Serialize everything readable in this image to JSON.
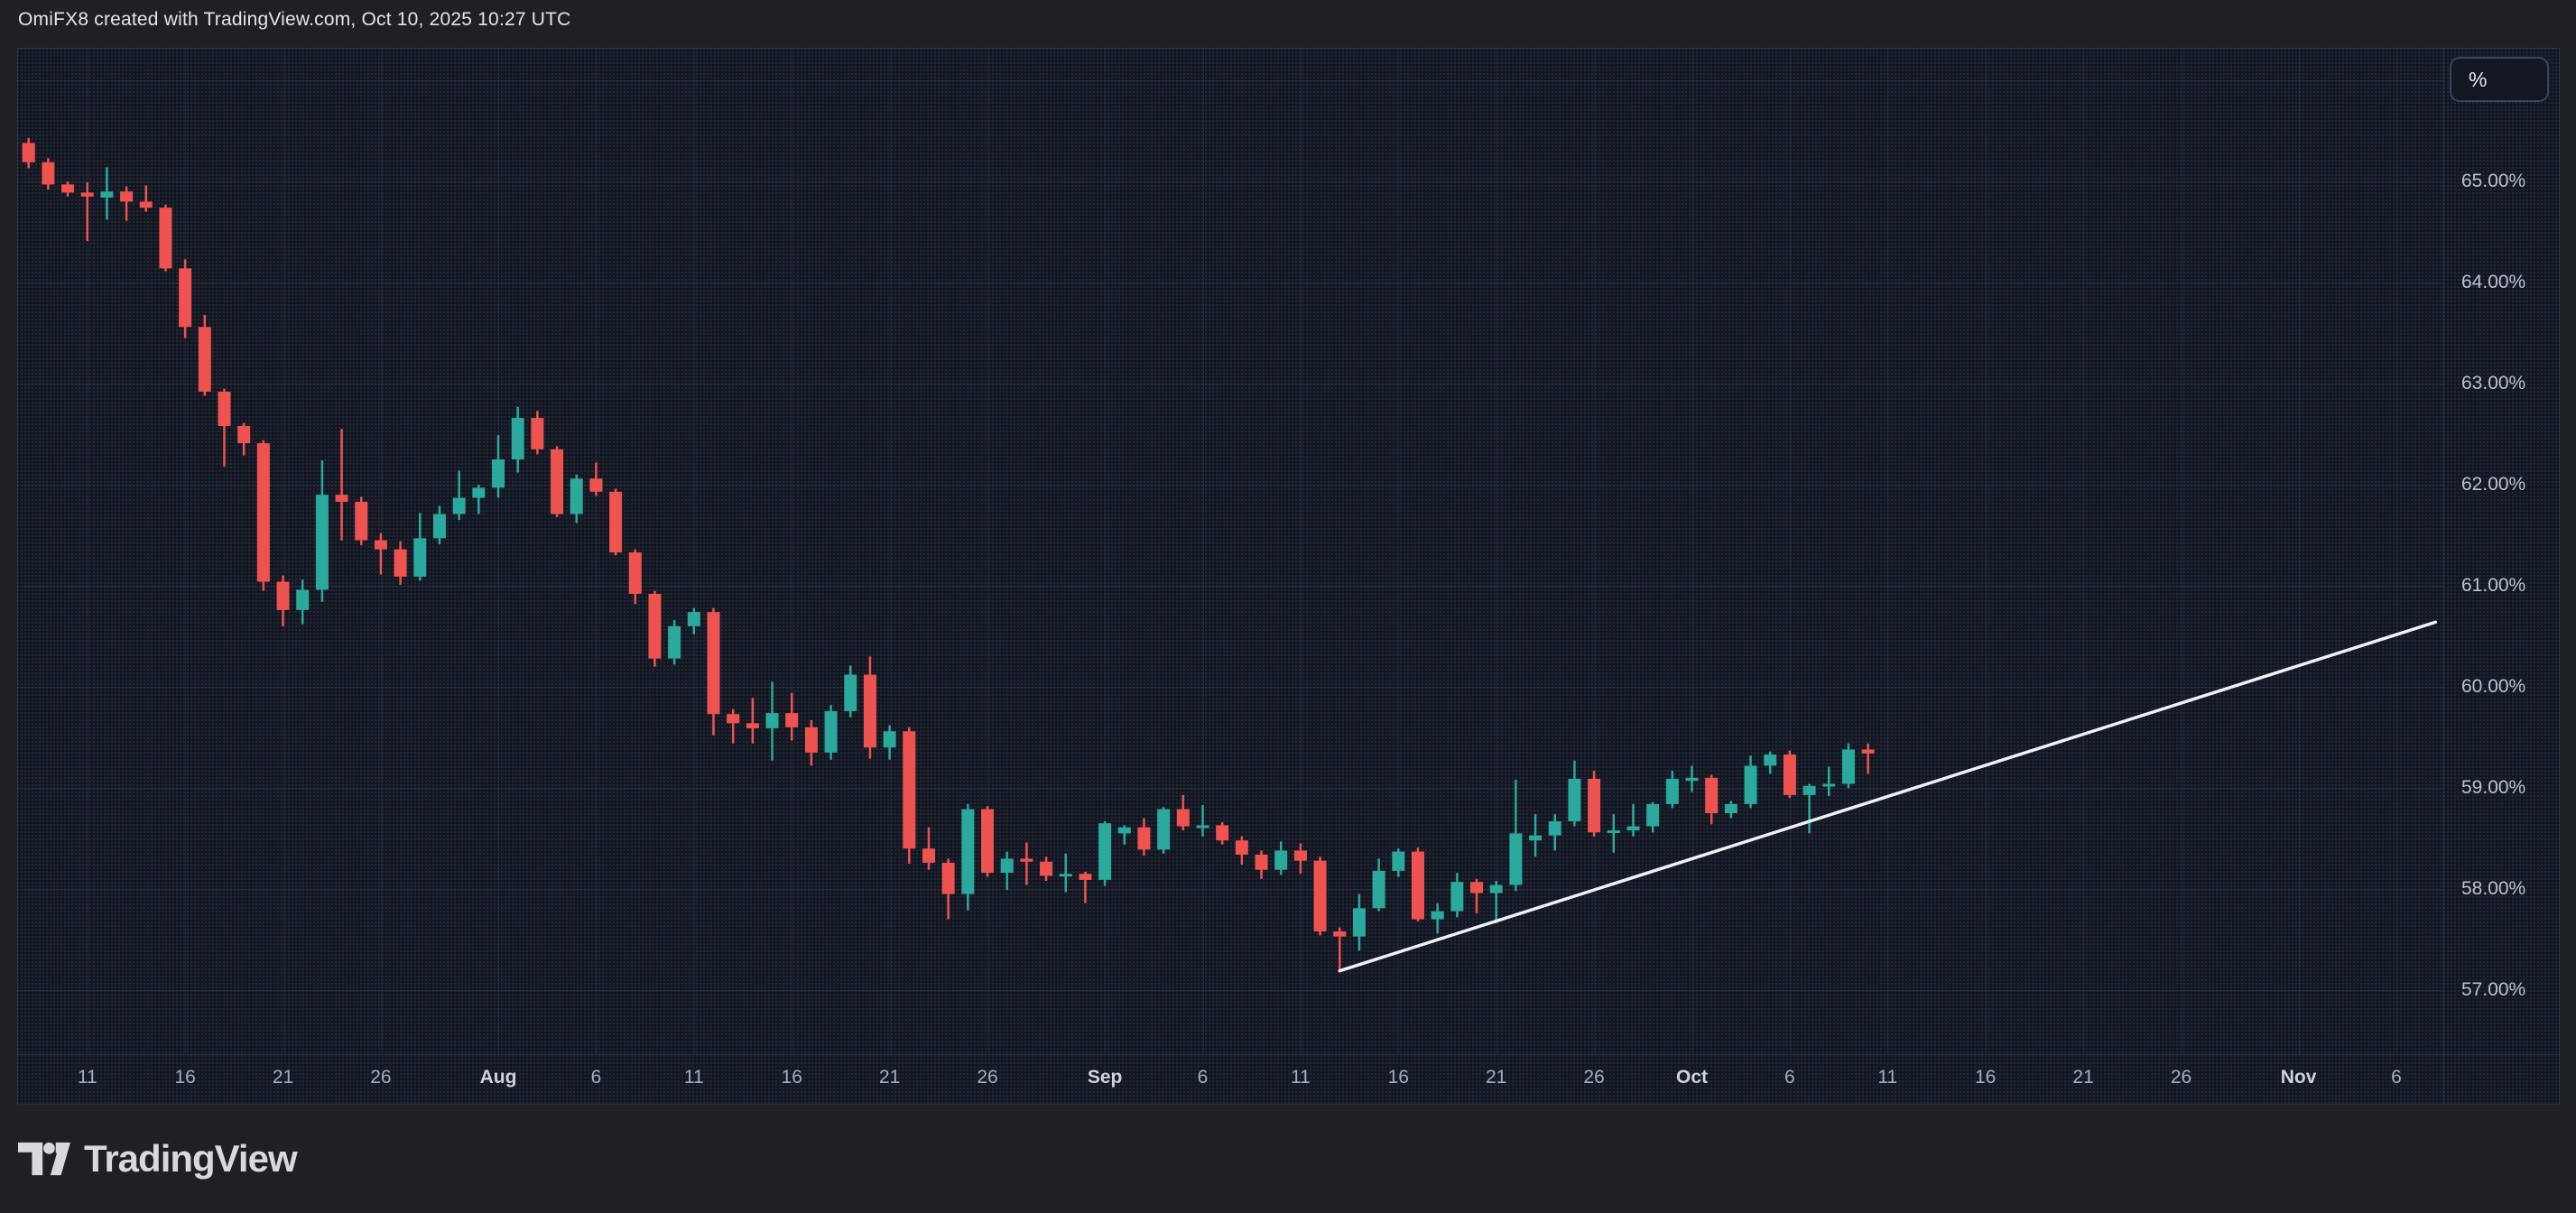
{
  "header": {
    "title": "OmiFX8 created with TradingView.com, Oct 10, 2025 10:27 UTC"
  },
  "price_scale": {
    "unit_button_label": "%",
    "ticks": [
      {
        "label": "65.00%",
        "value": 65
      },
      {
        "label": "64.00%",
        "value": 64
      },
      {
        "label": "63.00%",
        "value": 63
      },
      {
        "label": "62.00%",
        "value": 62
      },
      {
        "label": "61.00%",
        "value": 61
      },
      {
        "label": "60.00%",
        "value": 60
      },
      {
        "label": "59.00%",
        "value": 59
      },
      {
        "label": "58.00%",
        "value": 58
      },
      {
        "label": "57.00%",
        "value": 57
      }
    ]
  },
  "time_scale": {
    "ticks": [
      {
        "label": "11",
        "date": "2025-07-11",
        "emphasis": false
      },
      {
        "label": "16",
        "date": "2025-07-16",
        "emphasis": false
      },
      {
        "label": "21",
        "date": "2025-07-21",
        "emphasis": false
      },
      {
        "label": "26",
        "date": "2025-07-26",
        "emphasis": false
      },
      {
        "label": "Aug",
        "date": "2025-08-01",
        "emphasis": true
      },
      {
        "label": "6",
        "date": "2025-08-06",
        "emphasis": false
      },
      {
        "label": "11",
        "date": "2025-08-11",
        "emphasis": false
      },
      {
        "label": "16",
        "date": "2025-08-16",
        "emphasis": false
      },
      {
        "label": "21",
        "date": "2025-08-21",
        "emphasis": false
      },
      {
        "label": "26",
        "date": "2025-08-26",
        "emphasis": false
      },
      {
        "label": "Sep",
        "date": "2025-09-01",
        "emphasis": true
      },
      {
        "label": "6",
        "date": "2025-09-06",
        "emphasis": false
      },
      {
        "label": "11",
        "date": "2025-09-11",
        "emphasis": false
      },
      {
        "label": "16",
        "date": "2025-09-16",
        "emphasis": false
      },
      {
        "label": "21",
        "date": "2025-09-21",
        "emphasis": false
      },
      {
        "label": "26",
        "date": "2025-09-26",
        "emphasis": false
      },
      {
        "label": "Oct",
        "date": "2025-10-01",
        "emphasis": true
      },
      {
        "label": "6",
        "date": "2025-10-06",
        "emphasis": false
      },
      {
        "label": "11",
        "date": "2025-10-11",
        "emphasis": false
      },
      {
        "label": "16",
        "date": "2025-10-16",
        "emphasis": false
      },
      {
        "label": "21",
        "date": "2025-10-21",
        "emphasis": false
      },
      {
        "label": "26",
        "date": "2025-10-26",
        "emphasis": false
      },
      {
        "label": "Nov",
        "date": "2025-11-01",
        "emphasis": true
      },
      {
        "label": "6",
        "date": "2025-11-06",
        "emphasis": false
      }
    ]
  },
  "footer": {
    "brand": "TradingView"
  },
  "colors": {
    "up": "#2aa99c",
    "down": "#ef5350",
    "trendline": "#eef1f8",
    "plot_background": "#131722",
    "outer_background": "#1f2023",
    "grid": "rgba(150,162,194,0.10)",
    "frame_border": "rgba(150,162,194,0.16)"
  },
  "chart_data": {
    "type": "candlestick",
    "value_format": "percent_2dp",
    "visible_value_range": [
      56.4,
      66.3
    ],
    "visible_date_range": [
      "2025-07-07",
      "2025-11-08"
    ],
    "grid": true,
    "legend_position": "none",
    "gridline_values": [
      57,
      58,
      59,
      60,
      61,
      62,
      63,
      64,
      65,
      66
    ],
    "trendline": {
      "start": {
        "date": "2025-09-13",
        "value": 57.19
      },
      "end": {
        "date": "2025-11-08",
        "value": 60.64
      }
    },
    "candles": [
      {
        "date": "2025-07-08",
        "open": 65.38,
        "high": 65.43,
        "low": 65.13,
        "close": 65.19
      },
      {
        "date": "2025-07-09",
        "open": 65.19,
        "high": 65.23,
        "low": 64.92,
        "close": 64.97
      },
      {
        "date": "2025-07-10",
        "open": 64.97,
        "high": 65.0,
        "low": 64.85,
        "close": 64.89
      },
      {
        "date": "2025-07-11",
        "open": 64.89,
        "high": 64.99,
        "low": 64.41,
        "close": 64.85
      },
      {
        "date": "2025-07-12",
        "open": 64.84,
        "high": 65.14,
        "low": 64.62,
        "close": 64.9
      },
      {
        "date": "2025-07-13",
        "open": 64.9,
        "high": 64.95,
        "low": 64.61,
        "close": 64.8
      },
      {
        "date": "2025-07-14",
        "open": 64.8,
        "high": 64.96,
        "low": 64.7,
        "close": 64.74
      },
      {
        "date": "2025-07-15",
        "open": 64.74,
        "high": 64.77,
        "low": 64.11,
        "close": 64.14
      },
      {
        "date": "2025-07-16",
        "open": 64.14,
        "high": 64.23,
        "low": 63.45,
        "close": 63.56
      },
      {
        "date": "2025-07-17",
        "open": 63.56,
        "high": 63.68,
        "low": 62.88,
        "close": 62.92
      },
      {
        "date": "2025-07-18",
        "open": 62.92,
        "high": 62.95,
        "low": 62.18,
        "close": 62.58
      },
      {
        "date": "2025-07-19",
        "open": 62.58,
        "high": 62.61,
        "low": 62.29,
        "close": 62.41
      },
      {
        "date": "2025-07-20",
        "open": 62.41,
        "high": 62.44,
        "low": 60.95,
        "close": 61.04
      },
      {
        "date": "2025-07-21",
        "open": 61.04,
        "high": 61.1,
        "low": 60.6,
        "close": 60.76
      },
      {
        "date": "2025-07-22",
        "open": 60.76,
        "high": 61.06,
        "low": 60.62,
        "close": 60.96
      },
      {
        "date": "2025-07-23",
        "open": 60.96,
        "high": 62.24,
        "low": 60.84,
        "close": 61.9
      },
      {
        "date": "2025-07-24",
        "open": 61.9,
        "high": 62.55,
        "low": 61.45,
        "close": 61.83
      },
      {
        "date": "2025-07-25",
        "open": 61.83,
        "high": 61.88,
        "low": 61.4,
        "close": 61.45
      },
      {
        "date": "2025-07-26",
        "open": 61.45,
        "high": 61.52,
        "low": 61.11,
        "close": 61.36
      },
      {
        "date": "2025-07-27",
        "open": 61.36,
        "high": 61.44,
        "low": 61.01,
        "close": 61.09
      },
      {
        "date": "2025-07-28",
        "open": 61.09,
        "high": 61.72,
        "low": 61.05,
        "close": 61.47
      },
      {
        "date": "2025-07-29",
        "open": 61.47,
        "high": 61.79,
        "low": 61.41,
        "close": 61.71
      },
      {
        "date": "2025-07-30",
        "open": 61.71,
        "high": 62.14,
        "low": 61.65,
        "close": 61.87
      },
      {
        "date": "2025-07-31",
        "open": 61.87,
        "high": 62.0,
        "low": 61.71,
        "close": 61.97
      },
      {
        "date": "2025-08-01",
        "open": 61.97,
        "high": 62.49,
        "low": 61.87,
        "close": 62.25
      },
      {
        "date": "2025-08-02",
        "open": 62.25,
        "high": 62.77,
        "low": 62.12,
        "close": 62.66
      },
      {
        "date": "2025-08-03",
        "open": 62.66,
        "high": 62.73,
        "low": 62.3,
        "close": 62.35
      },
      {
        "date": "2025-08-04",
        "open": 62.35,
        "high": 62.38,
        "low": 61.68,
        "close": 61.71
      },
      {
        "date": "2025-08-05",
        "open": 61.71,
        "high": 62.1,
        "low": 61.62,
        "close": 62.06
      },
      {
        "date": "2025-08-06",
        "open": 62.06,
        "high": 62.22,
        "low": 61.89,
        "close": 61.93
      },
      {
        "date": "2025-08-07",
        "open": 61.93,
        "high": 61.96,
        "low": 61.3,
        "close": 61.33
      },
      {
        "date": "2025-08-08",
        "open": 61.33,
        "high": 61.36,
        "low": 60.82,
        "close": 60.92
      },
      {
        "date": "2025-08-09",
        "open": 60.92,
        "high": 60.95,
        "low": 60.2,
        "close": 60.28
      },
      {
        "date": "2025-08-10",
        "open": 60.28,
        "high": 60.66,
        "low": 60.22,
        "close": 60.6
      },
      {
        "date": "2025-08-11",
        "open": 60.6,
        "high": 60.78,
        "low": 60.52,
        "close": 60.74
      },
      {
        "date": "2025-08-12",
        "open": 60.74,
        "high": 60.78,
        "low": 59.52,
        "close": 59.73
      },
      {
        "date": "2025-08-13",
        "open": 59.73,
        "high": 59.78,
        "low": 59.44,
        "close": 59.64
      },
      {
        "date": "2025-08-14",
        "open": 59.64,
        "high": 59.89,
        "low": 59.44,
        "close": 59.59
      },
      {
        "date": "2025-08-15",
        "open": 59.59,
        "high": 60.05,
        "low": 59.27,
        "close": 59.74
      },
      {
        "date": "2025-08-16",
        "open": 59.74,
        "high": 59.94,
        "low": 59.47,
        "close": 59.6
      },
      {
        "date": "2025-08-17",
        "open": 59.6,
        "high": 59.67,
        "low": 59.22,
        "close": 59.35
      },
      {
        "date": "2025-08-18",
        "open": 59.35,
        "high": 59.82,
        "low": 59.28,
        "close": 59.76
      },
      {
        "date": "2025-08-19",
        "open": 59.76,
        "high": 60.21,
        "low": 59.7,
        "close": 60.12
      },
      {
        "date": "2025-08-20",
        "open": 60.12,
        "high": 60.3,
        "low": 59.29,
        "close": 59.4
      },
      {
        "date": "2025-08-21",
        "open": 59.4,
        "high": 59.62,
        "low": 59.28,
        "close": 59.56
      },
      {
        "date": "2025-08-22",
        "open": 59.56,
        "high": 59.6,
        "low": 58.25,
        "close": 58.4
      },
      {
        "date": "2025-08-23",
        "open": 58.4,
        "high": 58.61,
        "low": 58.19,
        "close": 58.26
      },
      {
        "date": "2025-08-24",
        "open": 58.26,
        "high": 58.3,
        "low": 57.7,
        "close": 57.95
      },
      {
        "date": "2025-08-25",
        "open": 57.95,
        "high": 58.84,
        "low": 57.79,
        "close": 58.79
      },
      {
        "date": "2025-08-26",
        "open": 58.79,
        "high": 58.82,
        "low": 58.12,
        "close": 58.16
      },
      {
        "date": "2025-08-27",
        "open": 58.16,
        "high": 58.37,
        "low": 57.99,
        "close": 58.3
      },
      {
        "date": "2025-08-28",
        "open": 58.3,
        "high": 58.46,
        "low": 58.04,
        "close": 58.27
      },
      {
        "date": "2025-08-29",
        "open": 58.27,
        "high": 58.32,
        "low": 58.08,
        "close": 58.13
      },
      {
        "date": "2025-08-30",
        "open": 58.13,
        "high": 58.35,
        "low": 57.97,
        "close": 58.15
      },
      {
        "date": "2025-08-31",
        "open": 58.15,
        "high": 58.17,
        "low": 57.86,
        "close": 58.09
      },
      {
        "date": "2025-09-01",
        "open": 58.09,
        "high": 58.67,
        "low": 58.03,
        "close": 58.65
      },
      {
        "date": "2025-09-02",
        "open": 58.55,
        "high": 58.63,
        "low": 58.44,
        "close": 58.61
      },
      {
        "date": "2025-09-03",
        "open": 58.61,
        "high": 58.7,
        "low": 58.33,
        "close": 58.39
      },
      {
        "date": "2025-09-04",
        "open": 58.39,
        "high": 58.81,
        "low": 58.35,
        "close": 58.79
      },
      {
        "date": "2025-09-05",
        "open": 58.79,
        "high": 58.93,
        "low": 58.58,
        "close": 58.62
      },
      {
        "date": "2025-09-06",
        "open": 58.62,
        "high": 58.83,
        "low": 58.52,
        "close": 58.63
      },
      {
        "date": "2025-09-07",
        "open": 58.63,
        "high": 58.66,
        "low": 58.44,
        "close": 58.48
      },
      {
        "date": "2025-09-08",
        "open": 58.48,
        "high": 58.52,
        "low": 58.24,
        "close": 58.34
      },
      {
        "date": "2025-09-09",
        "open": 58.34,
        "high": 58.38,
        "low": 58.1,
        "close": 58.19
      },
      {
        "date": "2025-09-10",
        "open": 58.19,
        "high": 58.47,
        "low": 58.14,
        "close": 58.38
      },
      {
        "date": "2025-09-11",
        "open": 58.38,
        "high": 58.45,
        "low": 58.15,
        "close": 58.28
      },
      {
        "date": "2025-09-12",
        "open": 58.28,
        "high": 58.32,
        "low": 57.54,
        "close": 57.58
      },
      {
        "date": "2025-09-13",
        "open": 57.58,
        "high": 57.62,
        "low": 57.19,
        "close": 57.53
      },
      {
        "date": "2025-09-14",
        "open": 57.53,
        "high": 57.95,
        "low": 57.39,
        "close": 57.81
      },
      {
        "date": "2025-09-15",
        "open": 57.81,
        "high": 58.3,
        "low": 57.78,
        "close": 58.18
      },
      {
        "date": "2025-09-16",
        "open": 58.18,
        "high": 58.4,
        "low": 58.12,
        "close": 58.37
      },
      {
        "date": "2025-09-17",
        "open": 58.37,
        "high": 58.41,
        "low": 57.68,
        "close": 57.7
      },
      {
        "date": "2025-09-18",
        "open": 57.7,
        "high": 57.86,
        "low": 57.56,
        "close": 57.78
      },
      {
        "date": "2025-09-19",
        "open": 57.78,
        "high": 58.16,
        "low": 57.72,
        "close": 58.07
      },
      {
        "date": "2025-09-20",
        "open": 58.07,
        "high": 58.1,
        "low": 57.76,
        "close": 57.96
      },
      {
        "date": "2025-09-21",
        "open": 57.96,
        "high": 58.08,
        "low": 57.66,
        "close": 58.04
      },
      {
        "date": "2025-09-22",
        "open": 58.04,
        "high": 59.08,
        "low": 57.98,
        "close": 58.55
      },
      {
        "date": "2025-09-23",
        "open": 58.48,
        "high": 58.74,
        "low": 58.32,
        "close": 58.53
      },
      {
        "date": "2025-09-24",
        "open": 58.53,
        "high": 58.74,
        "low": 58.38,
        "close": 58.67
      },
      {
        "date": "2025-09-25",
        "open": 58.67,
        "high": 59.27,
        "low": 58.62,
        "close": 59.09
      },
      {
        "date": "2025-09-26",
        "open": 59.09,
        "high": 59.17,
        "low": 58.52,
        "close": 58.56
      },
      {
        "date": "2025-09-27",
        "open": 58.56,
        "high": 58.74,
        "low": 58.36,
        "close": 58.58
      },
      {
        "date": "2025-09-28",
        "open": 58.58,
        "high": 58.84,
        "low": 58.52,
        "close": 58.62
      },
      {
        "date": "2025-09-29",
        "open": 58.62,
        "high": 58.86,
        "low": 58.56,
        "close": 58.84
      },
      {
        "date": "2025-09-30",
        "open": 58.84,
        "high": 59.17,
        "low": 58.8,
        "close": 59.09
      },
      {
        "date": "2025-10-01",
        "open": 59.07,
        "high": 59.22,
        "low": 58.96,
        "close": 59.1
      },
      {
        "date": "2025-10-02",
        "open": 59.1,
        "high": 59.13,
        "low": 58.64,
        "close": 58.75
      },
      {
        "date": "2025-10-03",
        "open": 58.75,
        "high": 58.87,
        "low": 58.7,
        "close": 58.84
      },
      {
        "date": "2025-10-04",
        "open": 58.84,
        "high": 59.32,
        "low": 58.8,
        "close": 59.22
      },
      {
        "date": "2025-10-05",
        "open": 59.22,
        "high": 59.36,
        "low": 59.14,
        "close": 59.33
      },
      {
        "date": "2025-10-06",
        "open": 59.33,
        "high": 59.37,
        "low": 58.9,
        "close": 58.93
      },
      {
        "date": "2025-10-07",
        "open": 58.93,
        "high": 59.04,
        "low": 58.55,
        "close": 59.02
      },
      {
        "date": "2025-10-08",
        "open": 59.02,
        "high": 59.21,
        "low": 58.92,
        "close": 59.04
      },
      {
        "date": "2025-10-09",
        "open": 59.04,
        "high": 59.44,
        "low": 59.0,
        "close": 59.38
      },
      {
        "date": "2025-10-10",
        "open": 59.38,
        "high": 59.44,
        "low": 59.14,
        "close": 59.34
      }
    ]
  }
}
